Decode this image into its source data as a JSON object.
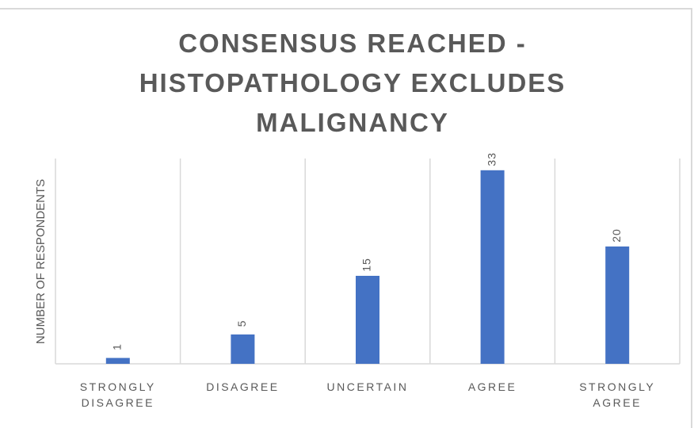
{
  "chart_data": {
    "type": "bar",
    "title": "CONSENSUS REACHED - HISTOPATHOLOGY EXCLUDES MALIGNANCY",
    "y_label": "NUMBER OF RESPONDENTS",
    "categories": [
      "STRONGLY DISAGREE",
      "DISAGREE",
      "UNCERTAIN",
      "AGREE",
      "STRONGLY AGREE"
    ],
    "values": [
      1,
      5,
      15,
      33,
      20
    ],
    "color": "#4472c4",
    "ylim": [
      0,
      35
    ]
  }
}
